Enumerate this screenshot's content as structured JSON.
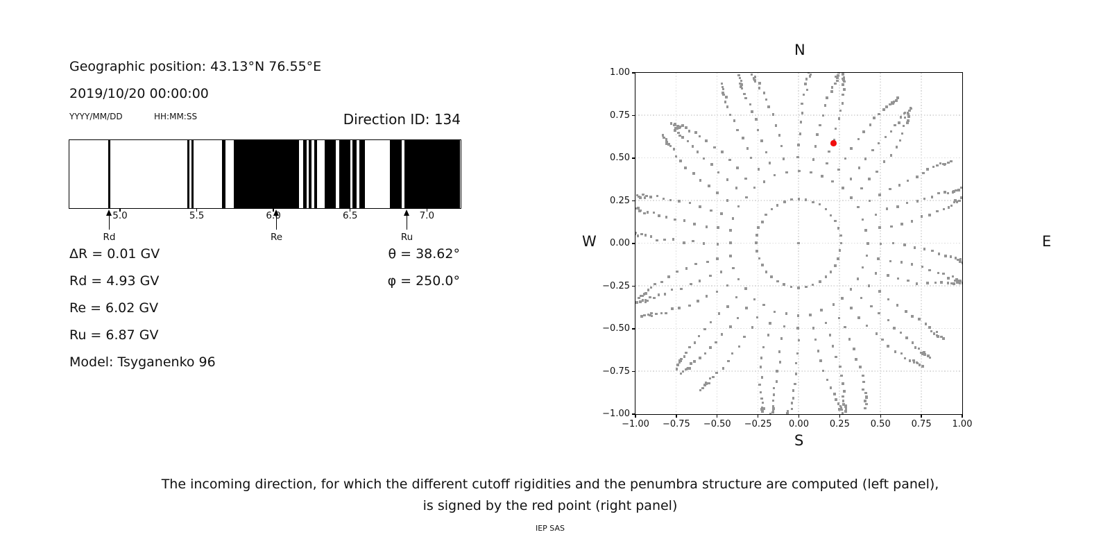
{
  "left_panel": {
    "geographic_position": "Geographic position: 43.13°N 76.55°E",
    "datetime": "2019/10/20 00:00:00",
    "date_format_label": "YYYY/MM/DD",
    "time_format_label": "HH:MM:SS",
    "direction_id": "Direction ID: 134",
    "delta_r": "ΔR = 0.01 GV",
    "rd": "Rd = 4.93 GV",
    "re": "Re = 6.02 GV",
    "ru": "Ru = 6.87 GV",
    "model": "Model: Tsyganenko 96",
    "theta": "θ = 38.62°",
    "phi": "φ = 250.0°"
  },
  "caption": {
    "line1": "The incoming direction, for which the different cutoff rigidities and the penumbra structure are computed (left panel),",
    "line2": "is signed by the red point (right panel)",
    "credit": "IEP SAS"
  },
  "chart_data": [
    {
      "type": "bar",
      "name": "penumbra-structure",
      "xlim": [
        4.67,
        7.22
      ],
      "xticks": [
        5.0,
        5.5,
        6.0,
        6.5,
        7.0
      ],
      "xtick_labels": [
        "5.0",
        "5.5",
        "6.0",
        "6.5",
        "7.0"
      ],
      "bar_color": "#000000",
      "forbidden_bands_gv": [
        [
          4.925,
          4.94
        ],
        [
          5.44,
          5.453
        ],
        [
          5.466,
          5.48
        ],
        [
          5.667,
          5.69
        ],
        [
          5.744,
          6.17
        ],
        [
          6.195,
          6.217
        ],
        [
          6.231,
          6.252
        ],
        [
          6.268,
          6.287
        ],
        [
          6.337,
          6.41
        ],
        [
          6.43,
          6.503
        ],
        [
          6.518,
          6.545
        ],
        [
          6.56,
          6.6
        ],
        [
          6.76,
          6.838
        ],
        [
          6.858,
          7.22
        ]
      ],
      "markers": [
        {
          "label": "Rd",
          "value_gv": 4.93
        },
        {
          "label": "Re",
          "value_gv": 6.02
        },
        {
          "label": "Ru",
          "value_gv": 6.87
        }
      ]
    },
    {
      "type": "scatter",
      "name": "incoming-direction-map",
      "compass": {
        "top": "N",
        "bottom": "S",
        "left": "W",
        "right": "E"
      },
      "xlim": [
        -1,
        1
      ],
      "ylim": [
        -1,
        1
      ],
      "grid": true,
      "grid_step": 0.25,
      "xtick_values": [
        -1,
        -0.75,
        -0.5,
        -0.25,
        0,
        0.25,
        0.5,
        0.75,
        1
      ],
      "xtick_labels": [
        "−1.00",
        "−0.75",
        "−0.50",
        "−0.25",
        "0.00",
        "0.25",
        "0.50",
        "0.75",
        "1.00"
      ],
      "ytick_values": [
        1,
        0.75,
        0.5,
        0.25,
        0,
        -0.25,
        -0.5,
        -0.75,
        -1
      ],
      "ytick_labels": [
        "1.00",
        "0.75",
        "0.50",
        "0.25",
        "0.00",
        "−0.25",
        "−0.50",
        "−0.75",
        "−1.00"
      ],
      "dot_color": "#949494",
      "spokes": {
        "count": 36,
        "azimuth_step_deg": 10,
        "center_dot": true,
        "ring_radius": 0.2588,
        "dot_radii": [
          0.4226,
          0.5,
          0.5736,
          0.6428,
          0.7071,
          0.766,
          0.8192,
          0.866,
          0.9063,
          0.9397,
          0.9659,
          0.9848,
          0.9962,
          1.0
        ],
        "tip_radii": [
          1.012,
          1.03,
          1.048
        ],
        "bend_max_deg": 6
      },
      "red_point": {
        "x": 0.213,
        "y": 0.586,
        "color": "#f10e0e",
        "theta_deg": 38.62,
        "phi_deg": 250.0
      }
    }
  ]
}
